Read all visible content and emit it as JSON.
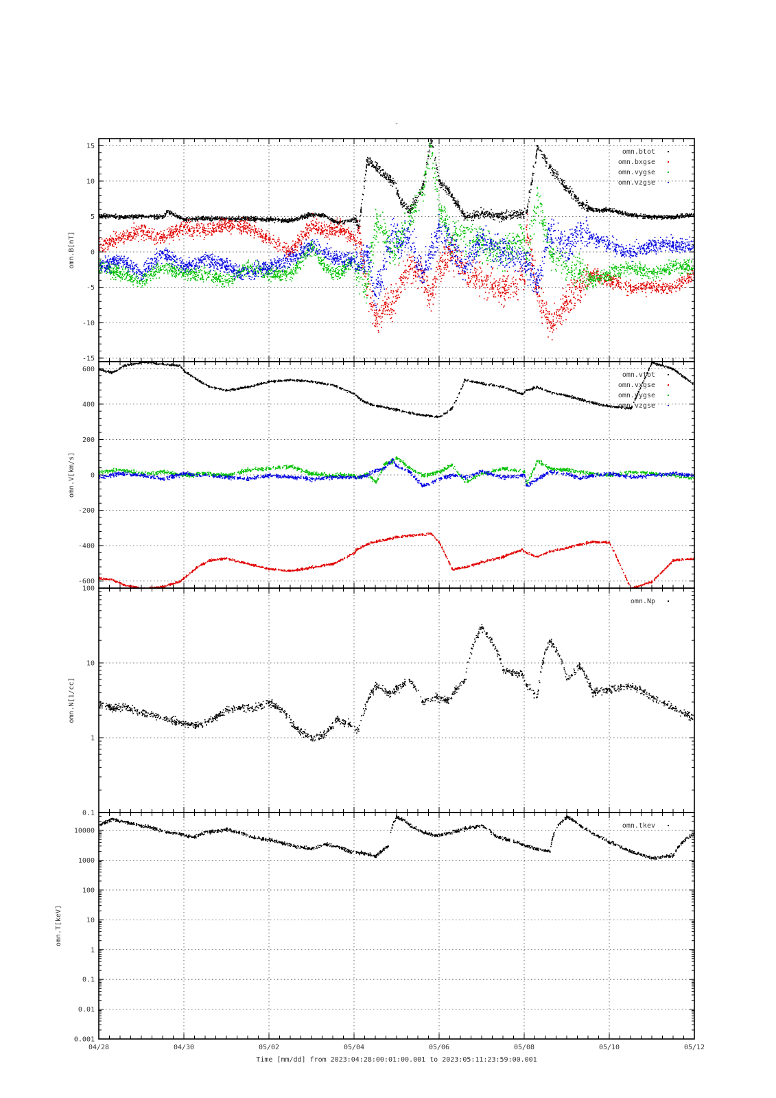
{
  "page_title": "-",
  "xlabel": "Time [mm/dd]  from 2023:04:28:00:01:00.001  to  2023:05:11:23:59:00.001",
  "colors": {
    "black": "#000000",
    "red": "#e00000",
    "green": "#00c000",
    "blue": "#0000e0"
  },
  "chart_data": [
    {
      "type": "scatter",
      "panel": "B",
      "ylabel": "omn.B[nT]",
      "yscale": "linear",
      "ylim": [
        -15.5,
        16
      ],
      "yticks": [
        -15,
        -10,
        -5,
        0,
        5,
        10,
        15
      ],
      "ytick_labels": [
        "-15",
        "-10",
        "-5",
        "0",
        "5",
        "10",
        "15"
      ],
      "xlim": [
        0,
        14
      ],
      "xticks": [
        "04/28",
        "04/30",
        "05/02",
        "05/04",
        "05/06",
        "05/08",
        "05/10",
        "05/12"
      ],
      "grid": true,
      "legend_position": "top-right",
      "series": [
        {
          "name": "omn.btot",
          "color": "#000000",
          "x": [
            0,
            0.5,
            1,
            1.5,
            1.6,
            2,
            2.5,
            3,
            3.5,
            4,
            4.5,
            5,
            5.3,
            5.6,
            6,
            6.05,
            6.1,
            6.3,
            6.5,
            6.7,
            6.9,
            7.1,
            7.3,
            7.6,
            7.8,
            8,
            8.3,
            8.6,
            9,
            9.5,
            9.95,
            10.05,
            10.3,
            10.6,
            11,
            11.3,
            11.6,
            12,
            12.5,
            13,
            13.5,
            14
          ],
          "y": [
            5.2,
            5,
            5.1,
            5,
            5.8,
            4.6,
            4.8,
            4.7,
            4.8,
            4.6,
            4.5,
            5.4,
            5.2,
            4.2,
            4.6,
            4.5,
            3.5,
            13,
            12,
            11,
            10,
            7,
            6,
            9,
            16,
            10,
            8,
            5,
            5.5,
            5,
            5.5,
            5.6,
            15,
            12,
            9,
            7,
            6,
            6,
            5.3,
            5,
            5,
            5.3
          ]
        },
        {
          "name": "omn.bxgse",
          "color": "#e00000",
          "x": [
            0,
            0.5,
            1,
            1.5,
            2,
            2.5,
            3,
            3.5,
            4,
            4.5,
            5,
            5.3,
            5.6,
            6,
            6.1,
            6.3,
            6.5,
            6.7,
            6.9,
            7.1,
            7.3,
            7.6,
            7.8,
            8,
            8.3,
            8.6,
            9,
            9.5,
            10,
            10.05,
            10.3,
            10.6,
            11,
            11.3,
            11.6,
            12,
            12.5,
            13,
            13.5,
            14
          ],
          "y": [
            1,
            2,
            3,
            2,
            3.5,
            3,
            4,
            3.5,
            2,
            0,
            4,
            3,
            3.5,
            2,
            3,
            -5,
            -9,
            -8,
            -7,
            -4,
            -2,
            -3,
            -6,
            -2,
            0,
            -3,
            -4,
            -5,
            -4,
            3.5,
            -6,
            -10,
            -7,
            -5,
            -3,
            -4,
            -5,
            -5,
            -5,
            -3
          ]
        },
        {
          "name": "omn.vygse",
          "color": "#00c000",
          "x": [
            0,
            0.5,
            1,
            1.5,
            2,
            2.5,
            3,
            3.5,
            4,
            4.5,
            5,
            5.3,
            5.6,
            6,
            6.1,
            6.3,
            6.5,
            6.7,
            6.9,
            7.1,
            7.3,
            7.6,
            7.8,
            8,
            8.3,
            8.6,
            9,
            9.5,
            10,
            10.05,
            10.3,
            10.6,
            11,
            11.3,
            11.6,
            12,
            12.5,
            13,
            13.5,
            14
          ],
          "y": [
            -2,
            -3,
            -4,
            -2,
            -3,
            -3,
            -4,
            -2,
            -3,
            -3,
            1,
            -2,
            -3,
            -1,
            -3,
            -5,
            4,
            3,
            0,
            2,
            5,
            8,
            15,
            6,
            2,
            3,
            1,
            0,
            2,
            -1,
            8,
            0,
            -2,
            -3,
            -4,
            -3,
            -2,
            -3,
            -2,
            -2
          ]
        },
        {
          "name": "omn.vzgse",
          "color": "#0000e0",
          "x": [
            0,
            0.5,
            1,
            1.5,
            2,
            2.5,
            3,
            3.5,
            4,
            4.5,
            5,
            5.3,
            5.6,
            6,
            6.1,
            6.3,
            6.5,
            6.7,
            6.9,
            7.1,
            7.3,
            7.6,
            7.8,
            8,
            8.3,
            8.6,
            9,
            9.5,
            10,
            10.05,
            10.3,
            10.6,
            11,
            11.3,
            11.6,
            12,
            12.5,
            13,
            13.5,
            14
          ],
          "y": [
            -2,
            -1,
            -3,
            0,
            -2,
            -1,
            -2,
            -3,
            -2,
            -1,
            1,
            0,
            -1,
            -1,
            -2,
            0,
            -6,
            -2,
            3,
            1,
            2,
            -3,
            0,
            3,
            1,
            -2,
            2,
            0,
            -1,
            -2,
            -4,
            3,
            1,
            3,
            2,
            1,
            0,
            1,
            1,
            1
          ]
        }
      ]
    },
    {
      "type": "scatter",
      "panel": "V",
      "ylabel": "omn.V[km/s]",
      "yscale": "linear",
      "ylim": [
        -640,
        640
      ],
      "yticks": [
        -600,
        -400,
        -200,
        0,
        200,
        400,
        600
      ],
      "ytick_labels": [
        "-600",
        "-400",
        "-200",
        "0",
        "200",
        "400",
        "600"
      ],
      "xlim": [
        0,
        14
      ],
      "grid": true,
      "legend_position": "top-right",
      "series": [
        {
          "name": "omn.vtot",
          "color": "#000000",
          "x": [
            0,
            0.3,
            0.6,
            1,
            1.5,
            1.9,
            2,
            2.3,
            2.6,
            3,
            3.5,
            4,
            4.5,
            5,
            5.5,
            5.9,
            6,
            6.05,
            6.2,
            6.4,
            6.6,
            6.8,
            7,
            7.3,
            7.6,
            7.8,
            8,
            8.3,
            8.6,
            9,
            9.5,
            9.95,
            10.05,
            10.3,
            10.6,
            11,
            11.3,
            11.6,
            12,
            12.5,
            13,
            13.5,
            14
          ],
          "y": [
            600,
            580,
            620,
            640,
            630,
            620,
            590,
            540,
            500,
            480,
            500,
            530,
            540,
            530,
            510,
            470,
            460,
            450,
            420,
            400,
            390,
            380,
            370,
            355,
            340,
            335,
            330,
            380,
            540,
            520,
            500,
            460,
            480,
            500,
            470,
            450,
            430,
            410,
            390,
            380,
            640,
            600,
            510
          ]
        },
        {
          "name": "omn.vxgse",
          "color": "#e00000",
          "x": [
            0,
            0.3,
            0.6,
            1,
            1.5,
            1.9,
            2,
            2.3,
            2.6,
            3,
            3.5,
            4,
            4.5,
            5,
            5.5,
            5.9,
            6,
            6.05,
            6.2,
            6.4,
            6.6,
            6.8,
            7,
            7.3,
            7.6,
            7.8,
            8,
            8.3,
            8.6,
            9,
            9.5,
            9.95,
            10.05,
            10.3,
            10.6,
            11,
            11.3,
            11.6,
            12,
            12.5,
            13,
            13.5,
            14
          ],
          "y": [
            -580,
            -590,
            -620,
            -640,
            -630,
            -600,
            -580,
            -520,
            -480,
            -470,
            -500,
            -530,
            -540,
            -520,
            -500,
            -450,
            -440,
            -420,
            -400,
            -380,
            -370,
            -360,
            -350,
            -340,
            -335,
            -330,
            -380,
            -530,
            -520,
            -490,
            -460,
            -420,
            -440,
            -460,
            -430,
            -410,
            -390,
            -375,
            -380,
            -640,
            -600,
            -480,
            -470
          ]
        },
        {
          "name": "omn.vygse",
          "color": "#00c000",
          "x": [
            0,
            0.5,
            1,
            1.5,
            2,
            2.5,
            3,
            3.5,
            4,
            4.5,
            5,
            5.5,
            6,
            6.1,
            6.3,
            6.5,
            6.7,
            6.9,
            7,
            7.3,
            7.6,
            8,
            8.3,
            8.6,
            9,
            9.5,
            10,
            10.05,
            10.3,
            10.6,
            11,
            11.3,
            11.6,
            12,
            12.5,
            13,
            13.5,
            14
          ],
          "y": [
            20,
            30,
            10,
            20,
            0,
            10,
            0,
            30,
            40,
            50,
            10,
            0,
            0,
            -10,
            10,
            -40,
            60,
            80,
            100,
            40,
            0,
            20,
            60,
            -40,
            10,
            40,
            20,
            -50,
            80,
            40,
            30,
            20,
            10,
            0,
            20,
            10,
            0,
            -20
          ]
        },
        {
          "name": "omn.vzgse",
          "color": "#0000e0",
          "x": [
            0,
            0.5,
            1,
            1.5,
            2,
            2.5,
            3,
            3.5,
            4,
            4.5,
            5,
            5.5,
            6,
            6.1,
            6.3,
            6.5,
            6.7,
            6.9,
            7,
            7.3,
            7.6,
            8,
            8.3,
            8.6,
            9,
            9.5,
            10,
            10.05,
            10.3,
            10.6,
            11,
            11.3,
            11.6,
            12,
            12.5,
            13,
            13.5,
            14
          ],
          "y": [
            -10,
            10,
            0,
            -20,
            10,
            0,
            -10,
            -20,
            0,
            -10,
            -20,
            -10,
            -10,
            -10,
            0,
            30,
            40,
            90,
            50,
            20,
            -60,
            -20,
            0,
            -10,
            20,
            -10,
            0,
            -60,
            -20,
            20,
            10,
            -20,
            0,
            10,
            -10,
            0,
            10,
            0
          ]
        }
      ]
    },
    {
      "type": "scatter",
      "panel": "N",
      "ylabel": "omn.N[1/cc]",
      "yscale": "log",
      "ylim": [
        0.1,
        100
      ],
      "yticks": [
        0.1,
        1,
        10,
        100
      ],
      "ytick_labels": [
        "0.1",
        "1",
        "10",
        "100"
      ],
      "xlim": [
        0,
        14
      ],
      "grid": true,
      "legend_position": "top-right",
      "series": [
        {
          "name": "omn.Np",
          "color": "#000000",
          "x": [
            0,
            0.3,
            0.6,
            1,
            1.3,
            1.6,
            1.9,
            2.1,
            2.4,
            2.8,
            3,
            3.3,
            3.6,
            3.8,
            4,
            4.3,
            4.6,
            5,
            5.3,
            5.6,
            5.9,
            6.1,
            6.3,
            6.5,
            6.8,
            7,
            7.3,
            7.6,
            7.9,
            8.2,
            8.6,
            9,
            9.5,
            9.95,
            10.05,
            10.3,
            10.6,
            11,
            11.3,
            11.6,
            12,
            12.5,
            13,
            13.5,
            14
          ],
          "y": [
            2.8,
            2.5,
            2.6,
            2.2,
            2,
            1.8,
            1.6,
            1.5,
            1.5,
            2,
            2.4,
            2.6,
            2.5,
            2.7,
            3,
            2.4,
            1.4,
            1,
            1.1,
            1.8,
            1.5,
            1.3,
            3,
            5,
            4,
            4.5,
            6,
            3,
            3.5,
            3.2,
            6,
            30,
            8,
            7,
            5,
            3.5,
            20,
            6,
            9,
            4,
            4.5,
            5,
            3.5,
            2.5,
            1.8
          ]
        }
      ]
    },
    {
      "type": "scatter",
      "panel": "T",
      "ylabel": "omn.T[keV]",
      "yscale": "log",
      "ylim": [
        0.001,
        40000
      ],
      "yticks": [
        0.001,
        0.01,
        0.1,
        1,
        10,
        100,
        1000,
        10000
      ],
      "ytick_labels": [
        "0.001",
        "0.01",
        "0.1",
        "1",
        "10",
        "100",
        "1000",
        "10000"
      ],
      "xlim": [
        0,
        14
      ],
      "grid": true,
      "legend_position": "top-right",
      "series": [
        {
          "name": "omn.tkev",
          "color": "#000000",
          "x": [
            0,
            0.3,
            0.6,
            1,
            1.3,
            1.6,
            1.9,
            2.2,
            2.5,
            2.8,
            3,
            3.3,
            3.6,
            4,
            4.3,
            4.6,
            5,
            5.3,
            5.6,
            5.9,
            6.2,
            6.5,
            6.8,
            7,
            7.3,
            7.6,
            7.9,
            8.2,
            8.6,
            9,
            9.3,
            9.6,
            9.95,
            10.05,
            10.3,
            10.6,
            11,
            11.3,
            11.6,
            12,
            12.5,
            13,
            13.5,
            14
          ],
          "y": [
            15000,
            25000,
            20000,
            15000,
            12000,
            9000,
            8000,
            6000,
            9000,
            10000,
            11000,
            9000,
            6000,
            5000,
            4000,
            3000,
            2500,
            3500,
            3000,
            2000,
            1800,
            1400,
            3000,
            30000,
            15000,
            9000,
            7000,
            8000,
            12000,
            15000,
            7000,
            5000,
            3500,
            3000,
            2500,
            2000,
            30000,
            15000,
            8000,
            4000,
            2000,
            1200,
            1500,
            8000
          ]
        }
      ]
    }
  ]
}
